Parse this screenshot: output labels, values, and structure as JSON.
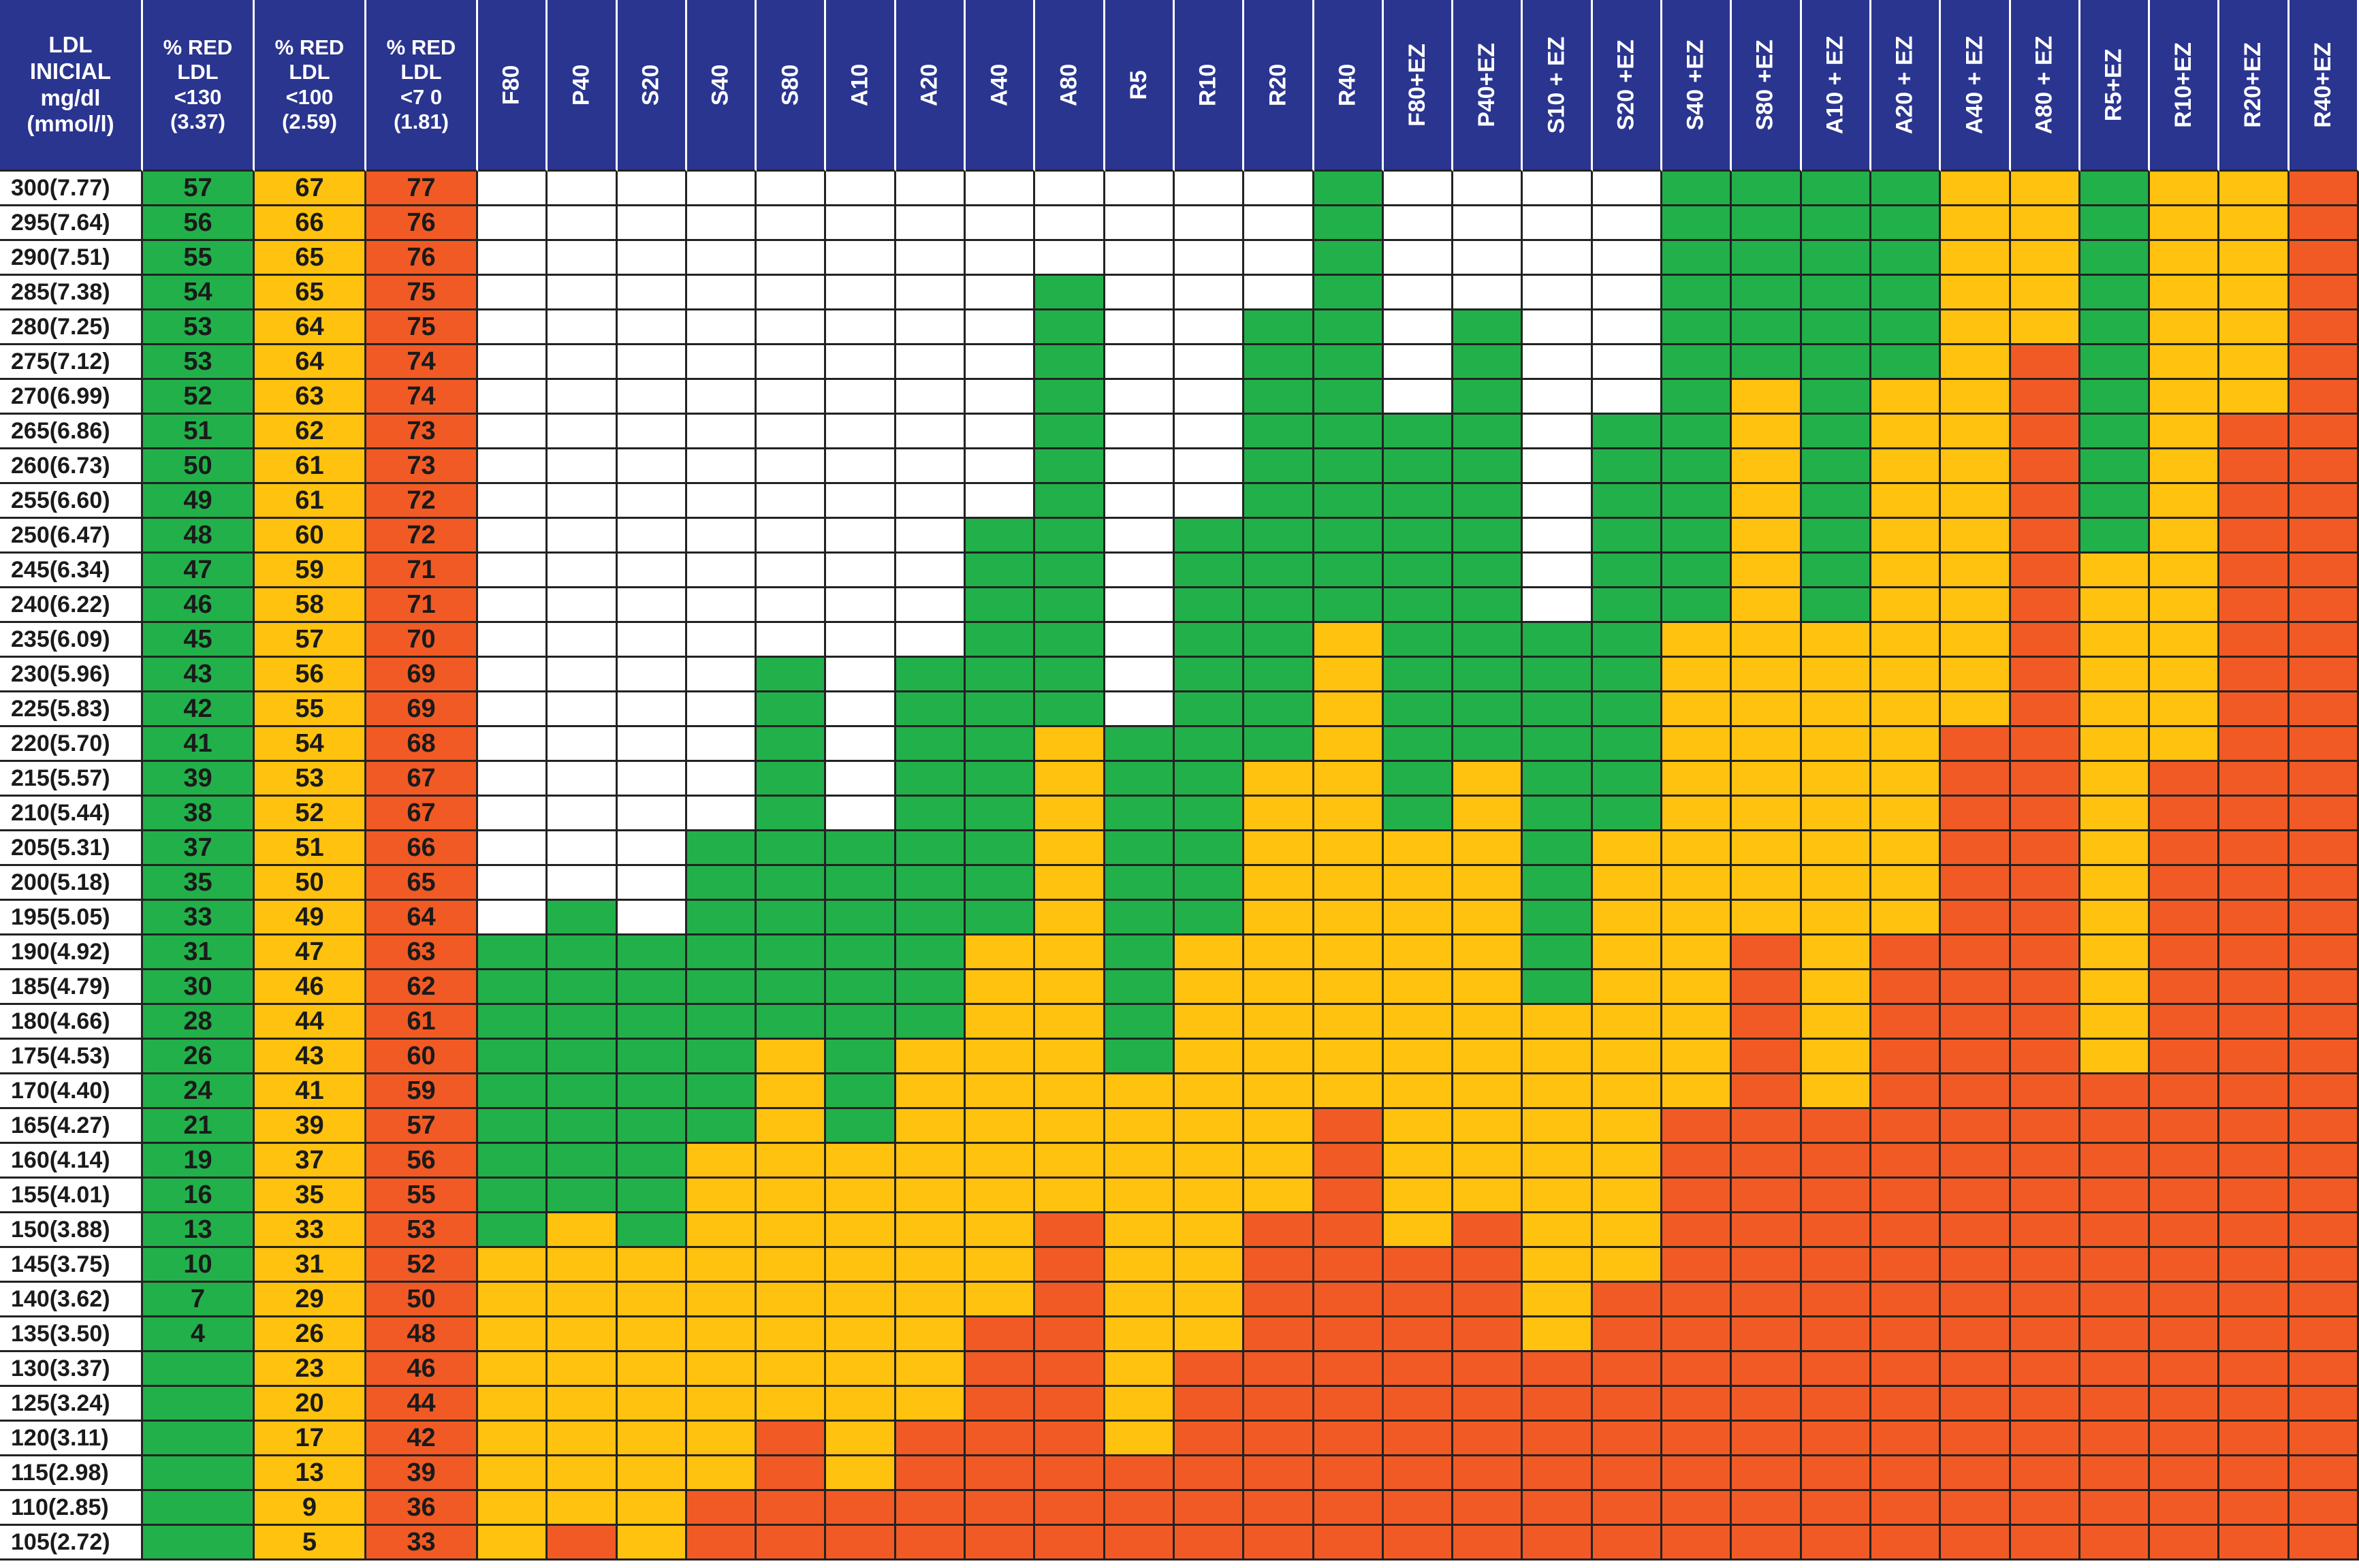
{
  "header": {
    "first": [
      "LDL",
      "INICIAL",
      "mg/dl",
      "(mmol/l)"
    ],
    "pct": [
      [
        "% RED",
        "LDL",
        "<130",
        "(3.37)"
      ],
      [
        "% RED",
        "LDL",
        "<100",
        "(2.59)"
      ],
      [
        "% RED",
        "LDL",
        "<7 0",
        "(1.81)"
      ]
    ],
    "drugs": [
      "F80",
      "P40",
      "S20",
      "S40",
      "S80",
      "A10",
      "A20",
      "A40",
      "A80",
      "R5",
      "R10",
      "R20",
      "R40",
      "F80+EZ",
      "P40+EZ",
      "S10 + EZ",
      "S20 +EZ",
      "S40 +EZ",
      "S80 +EZ",
      "A10 + EZ",
      "A20 + EZ",
      "A40 + EZ",
      "A80 + EZ",
      "R5+EZ",
      "R10+EZ",
      "R20+EZ",
      "R40+EZ"
    ]
  },
  "colors": {
    "header_bg": "#2a3590",
    "header_text": "#ffffff",
    "W": "#ffffff",
    "G": "#22b04b",
    "Y": "#ffc20e",
    "O": "#f15a24",
    "grid": "#222222"
  },
  "chart_data": {
    "type": "table",
    "rows": [
      {
        "label": "300(7.77)",
        "r130": "57",
        "r100": "67",
        "r70": "77",
        "cells": "WWWWWWWWWWWWGWWWWGGGGYYGYYO"
      },
      {
        "label": "295(7.64)",
        "r130": "56",
        "r100": "66",
        "r70": "76",
        "cells": "WWWWWWWWWWWWGWWWWGGGGYYGYYO"
      },
      {
        "label": "290(7.51)",
        "r130": "55",
        "r100": "65",
        "r70": "76",
        "cells": "WWWWWWWWWWWWGWWWWGGGGYYGYYO"
      },
      {
        "label": "285(7.38)",
        "r130": "54",
        "r100": "65",
        "r70": "75",
        "cells": "WWWWWWWWGWWWGWWWWGGGGYYGYYO"
      },
      {
        "label": "280(7.25)",
        "r130": "53",
        "r100": "64",
        "r70": "75",
        "cells": "WWWWWWWWGWWGGWGWWGGGGYYGYYO"
      },
      {
        "label": "275(7.12)",
        "r130": "53",
        "r100": "64",
        "r70": "74",
        "cells": "WWWWWWWWGWWGGWGWWGGGGYOGYYO"
      },
      {
        "label": "270(6.99)",
        "r130": "52",
        "r100": "63",
        "r70": "74",
        "cells": "WWWWWWWWGWWGGWGWWGYGYYOGYYO"
      },
      {
        "label": "265(6.86)",
        "r130": "51",
        "r100": "62",
        "r70": "73",
        "cells": "WWWWWWWWGWWGGGGWGGYGYYOGYOO"
      },
      {
        "label": "260(6.73)",
        "r130": "50",
        "r100": "61",
        "r70": "73",
        "cells": "WWWWWWWWGWWGGGGWGGYGYYOGYOO"
      },
      {
        "label": "255(6.60)",
        "r130": "49",
        "r100": "61",
        "r70": "72",
        "cells": "WWWWWWWWGWWGGGGWGGYGYYOGYOO"
      },
      {
        "label": "250(6.47)",
        "r130": "48",
        "r100": "60",
        "r70": "72",
        "cells": "WWWWWWWGGWGGGGGWGGYGYYOGYOO"
      },
      {
        "label": "245(6.34)",
        "r130": "47",
        "r100": "59",
        "r70": "71",
        "cells": "WWWWWWWGGWGGGGGWGGYGYYOYYOO"
      },
      {
        "label": "240(6.22)",
        "r130": "46",
        "r100": "58",
        "r70": "71",
        "cells": "WWWWWWWGGWGGGGGWGGYGYYOYYOO"
      },
      {
        "label": "235(6.09)",
        "r130": "45",
        "r100": "57",
        "r70": "70",
        "cells": "WWWWWWWGGWGGYGGGGYYYYYOYYOO"
      },
      {
        "label": "230(5.96)",
        "r130": "43",
        "r100": "56",
        "r70": "69",
        "cells": "WWWWGWGGGWGGYGGGGYYYYYOYYOO"
      },
      {
        "label": "225(5.83)",
        "r130": "42",
        "r100": "55",
        "r70": "69",
        "cells": "WWWWGWGGGWGGYGGGGYYYYYOYYOO"
      },
      {
        "label": "220(5.70)",
        "r130": "41",
        "r100": "54",
        "r70": "68",
        "cells": "WWWWGWGGYGGGYGGGGYYYYOOYYOO"
      },
      {
        "label": "215(5.57)",
        "r130": "39",
        "r100": "53",
        "r70": "67",
        "cells": "WWWWGWGGYGGYYGYGGYYYYOOYOOO"
      },
      {
        "label": "210(5.44)",
        "r130": "38",
        "r100": "52",
        "r70": "67",
        "cells": "WWWWGWGGYGGYYGYGGYYYYOOYOOO"
      },
      {
        "label": "205(5.31)",
        "r130": "37",
        "r100": "51",
        "r70": "66",
        "cells": "WWWGGGGGYGGYYYYGYYYYYOOYOOO"
      },
      {
        "label": "200(5.18)",
        "r130": "35",
        "r100": "50",
        "r70": "65",
        "cells": "WWWGGGGGYGGYYYYGYYYYYOOYOOO"
      },
      {
        "label": "195(5.05)",
        "r130": "33",
        "r100": "49",
        "r70": "64",
        "cells": "WGWGGGGGYGGYYYYGYYYYYOOYOOO"
      },
      {
        "label": "190(4.92)",
        "r130": "31",
        "r100": "47",
        "r70": "63",
        "cells": "GGGGGGGYYGYYYYYGYYOYOOOYOOO"
      },
      {
        "label": "185(4.79)",
        "r130": "30",
        "r100": "46",
        "r70": "62",
        "cells": "GGGGGGGYYGYYYYYGYYOYOOOYOOO"
      },
      {
        "label": "180(4.66)",
        "r130": "28",
        "r100": "44",
        "r70": "61",
        "cells": "GGGGGGGYYGYYYYYYYYOYOOOYOOO"
      },
      {
        "label": "175(4.53)",
        "r130": "26",
        "r100": "43",
        "r70": "60",
        "cells": "GGGGYGYYYGYYYYYYYYOYOOOYOOO"
      },
      {
        "label": "170(4.40)",
        "r130": "24",
        "r100": "41",
        "r70": "59",
        "cells": "GGGGYGYYYYYYYYYYYYOYOOOOOOO"
      },
      {
        "label": "165(4.27)",
        "r130": "21",
        "r100": "39",
        "r70": "57",
        "cells": "GGGGYGYYYYYYOYYYYOOOOOOOOOO"
      },
      {
        "label": "160(4.14)",
        "r130": "19",
        "r100": "37",
        "r70": "56",
        "cells": "GGGYYYYYYYYYOYYYYOOOOOOOOOO"
      },
      {
        "label": "155(4.01)",
        "r130": "16",
        "r100": "35",
        "r70": "55",
        "cells": "GGGYYYYYYYYYOYYYYOOOOOOOOOO"
      },
      {
        "label": "150(3.88)",
        "r130": "13",
        "r100": "33",
        "r70": "53",
        "cells": "GYGYYYYYOYYOOYOYYOOOOOOOOOO"
      },
      {
        "label": "145(3.75)",
        "r130": "10",
        "r100": "31",
        "r70": "52",
        "cells": "YYYYYYYYOYYOOOOYYOOOOOOOOOO"
      },
      {
        "label": "140(3.62)",
        "r130": "7",
        "r100": "29",
        "r70": "50",
        "cells": "YYYYYYYYOYYOOOOYOOOOOOOOOOO"
      },
      {
        "label": "135(3.50)",
        "r130": "4",
        "r100": "26",
        "r70": "48",
        "cells": "YYYYYYYOOYYOOOOYOOOOOOOOOOO"
      },
      {
        "label": "130(3.37)",
        "r130": "",
        "r100": "23",
        "r70": "46",
        "cells": "YYYYYYYOOYOOOOOOOOOOOOOOOOO"
      },
      {
        "label": "125(3.24)",
        "r130": "",
        "r100": "20",
        "r70": "44",
        "cells": "YYYYYYYOOYOOOOOOOOOOOOOOOOO"
      },
      {
        "label": "120(3.11)",
        "r130": "",
        "r100": "17",
        "r70": "42",
        "cells": "YYYYOYOOOYOOOOOOOOOOOOOOOOO"
      },
      {
        "label": "115(2.98)",
        "r130": "",
        "r100": "13",
        "r70": "39",
        "cells": "YYYYOYOOOOOOOOOOOOOOOOOOOOO"
      },
      {
        "label": "110(2.85)",
        "r130": "",
        "r100": "9",
        "r70": "36",
        "cells": "YYYOOOOOOOOOOOOOOOOOOOOOOOO"
      },
      {
        "label": "105(2.72)",
        "r130": "",
        "r100": "5",
        "r70": "33",
        "cells": "YOYOOOOOOOOOOOOOOOOOOOOOOOO"
      }
    ]
  }
}
